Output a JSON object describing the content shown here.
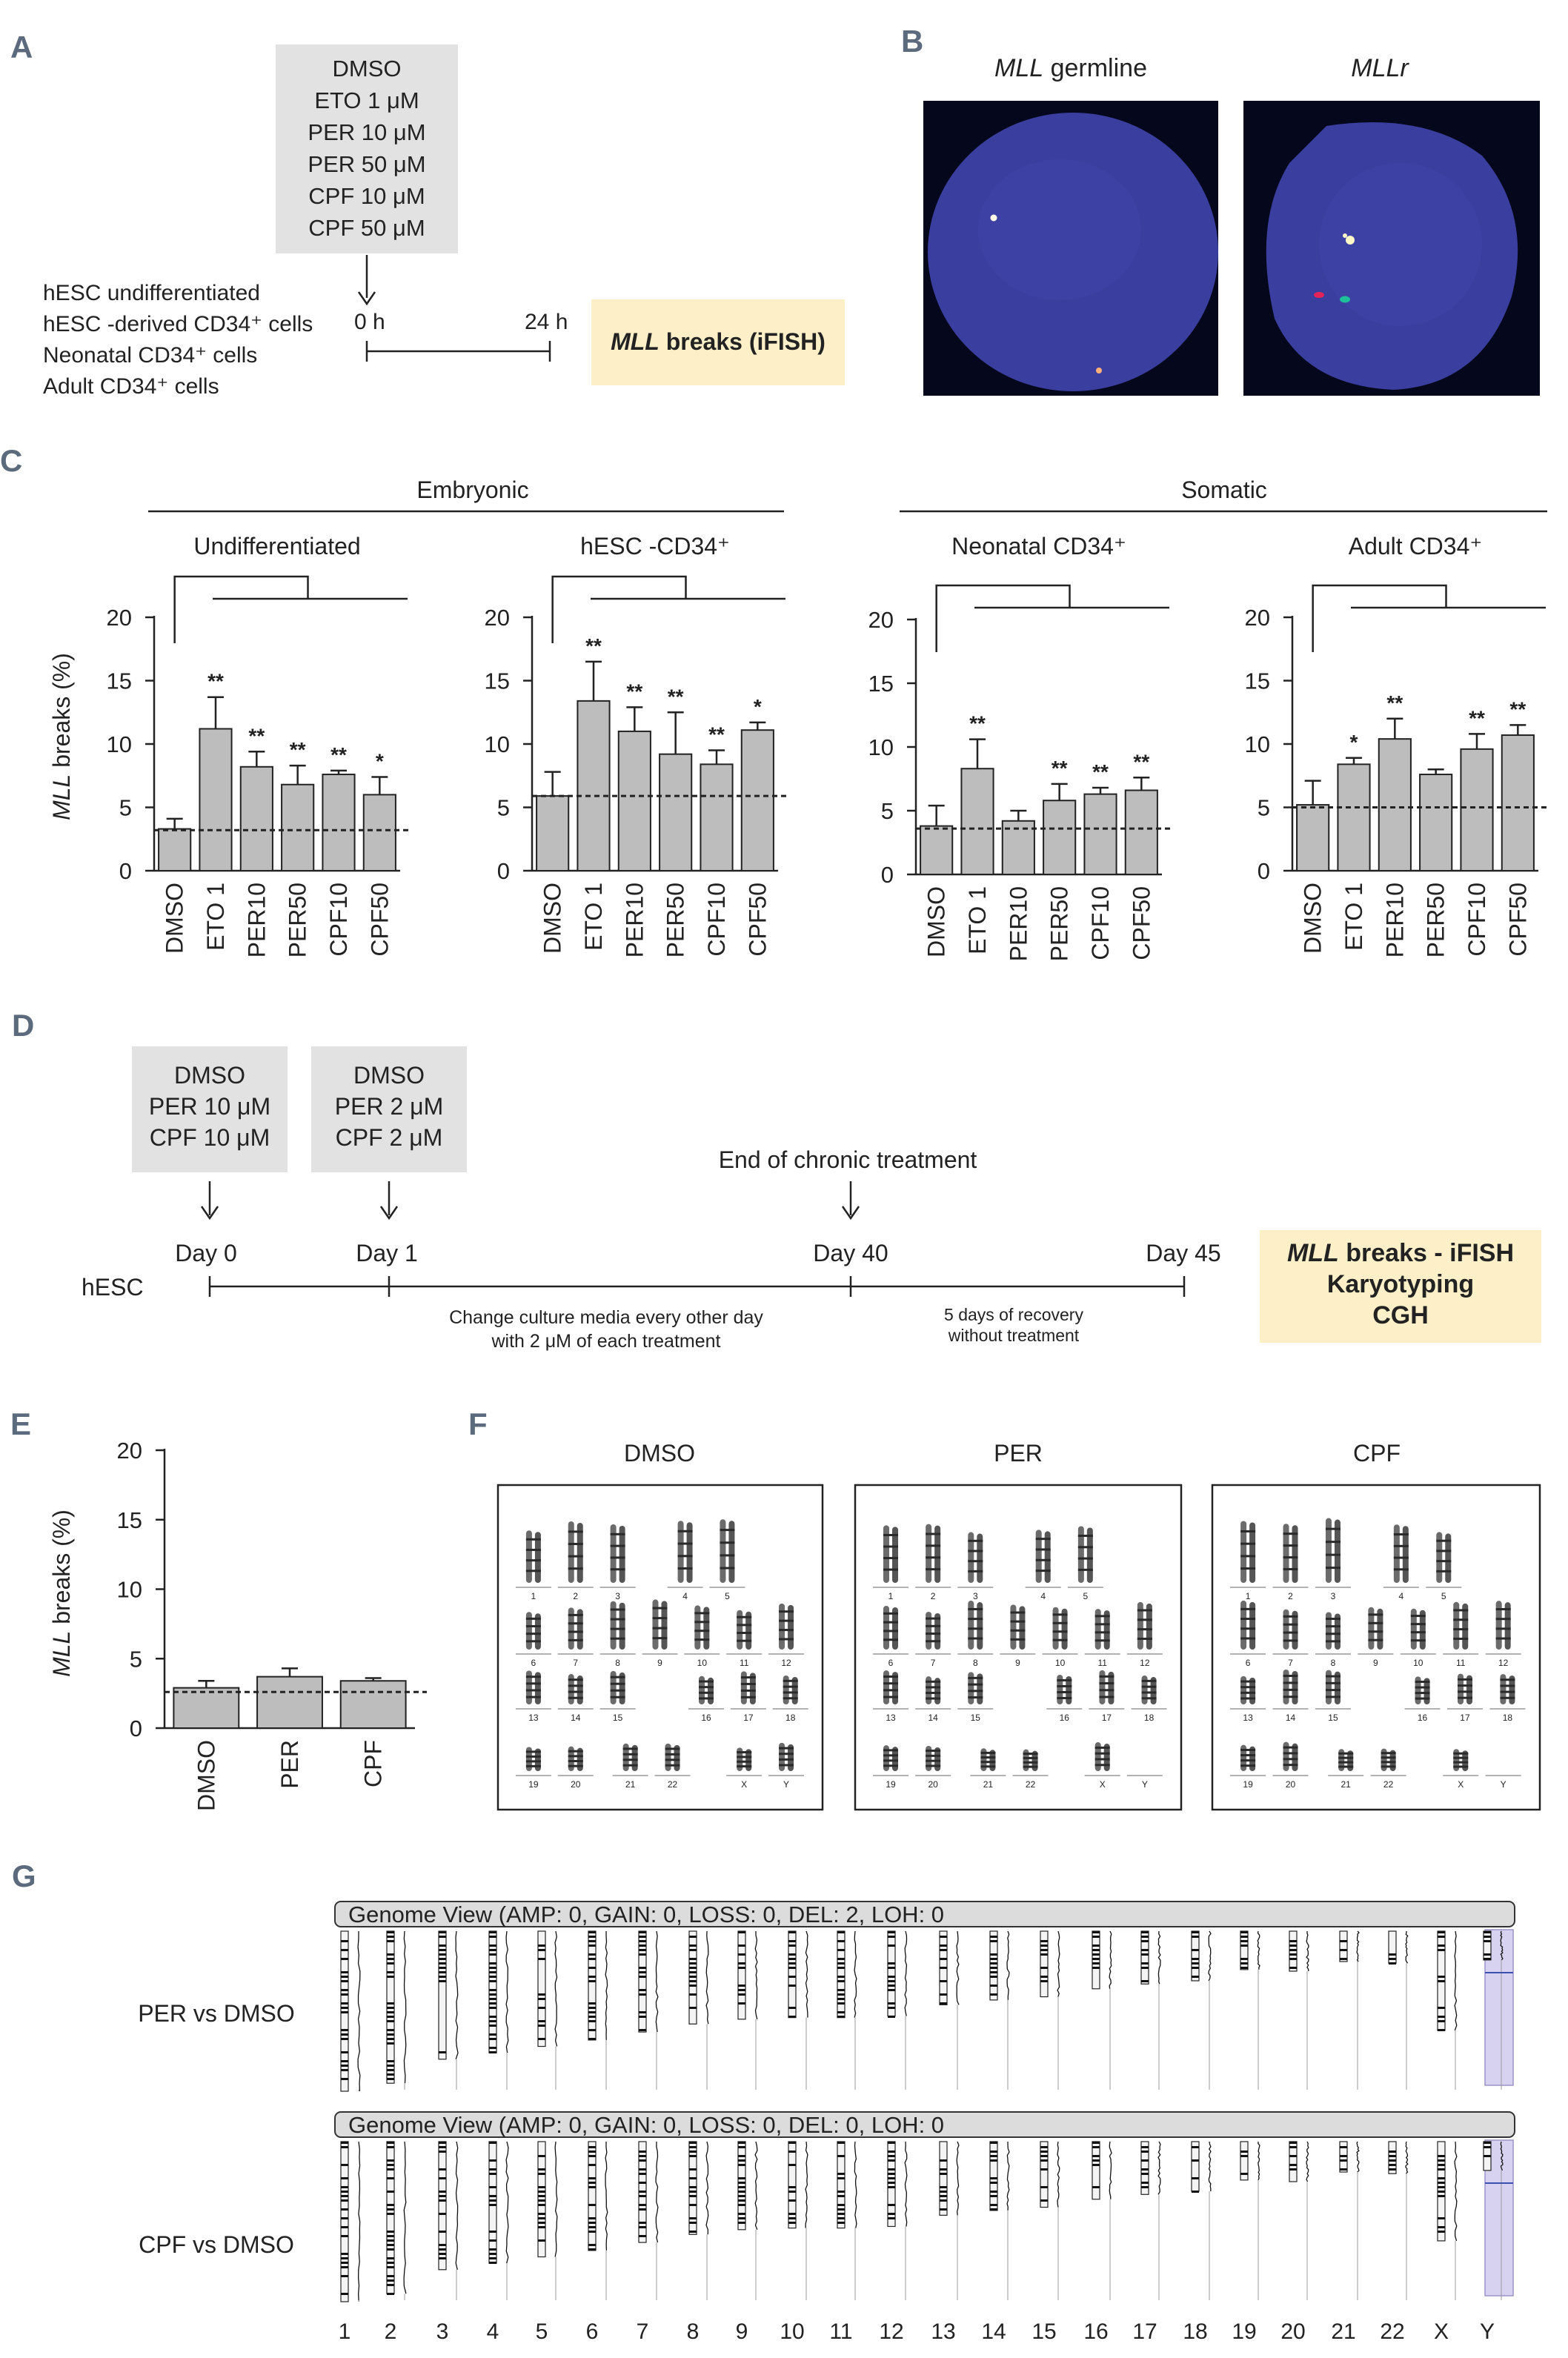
{
  "colors": {
    "bar": "#bdbdbd",
    "panel_letter": "#5b6b7d",
    "cream": "#fdf0c8",
    "grey_box": "#e2e2e2",
    "fish_bg": "#3a3e9e",
    "cgh_band": "#d6d2ef"
  },
  "panelA": {
    "letter": "A",
    "treatments": [
      "DMSO",
      "ETO 1 μM",
      "PER 10 μM",
      "PER 50 μM",
      "CPF 10 μM",
      "CPF 50 μM"
    ],
    "cells": [
      "hESC  undifferentiated",
      "hESC -derived CD34⁺ cells",
      "Neonatal CD34⁺ cells",
      "Adult CD34⁺ cells"
    ],
    "t0": "0 h",
    "t1": "24 h",
    "readout_gene": "MLL",
    "readout_rest": " breaks (iFISH)"
  },
  "panelB": {
    "letter": "B",
    "left_gene": "MLL",
    "left_rest": " germline",
    "right_title": "MLLr"
  },
  "panelC": {
    "letter": "C",
    "group_embryonic": "Embryonic",
    "group_somatic": "Somatic",
    "ylabel_gene": "MLL",
    "ylabel_rest": " breaks (%)"
  },
  "chart_data": [
    {
      "type": "bar",
      "title": "Undifferentiated",
      "categories": [
        "DMSO",
        "ETO 1",
        "PER10",
        "PER50",
        "CPF10",
        "CPF50"
      ],
      "values": [
        3.3,
        11.2,
        8.2,
        6.8,
        7.6,
        6.0
      ],
      "errors": [
        0.8,
        2.5,
        1.2,
        1.5,
        0.3,
        1.4
      ],
      "significance": [
        "",
        "**",
        "**",
        "**",
        "**",
        "*"
      ],
      "baseline": 3.2,
      "ylim": [
        0,
        20
      ],
      "yticks": [
        0,
        5,
        10,
        15,
        20
      ],
      "ylabel": "MLL breaks (%)"
    },
    {
      "type": "bar",
      "title": "hESC  -CD34⁺",
      "categories": [
        "DMSO",
        "ETO 1",
        "PER10",
        "PER50",
        "CPF10",
        "CPF50"
      ],
      "values": [
        5.9,
        13.4,
        11.0,
        9.2,
        8.4,
        11.1
      ],
      "errors": [
        1.9,
        3.1,
        1.9,
        3.3,
        1.1,
        0.6
      ],
      "significance": [
        "",
        "**",
        "**",
        "**",
        "**",
        "*"
      ],
      "baseline": 5.9,
      "ylim": [
        0,
        20
      ],
      "yticks": [
        0,
        5,
        10,
        15,
        20
      ],
      "ylabel": "MLL breaks (%)"
    },
    {
      "type": "bar",
      "title": "Neonatal CD34⁺",
      "categories": [
        "DMSO",
        "ETO 1",
        "PER10",
        "PER50",
        "CPF10",
        "CPF50"
      ],
      "values": [
        3.8,
        8.3,
        4.2,
        5.8,
        6.3,
        6.6
      ],
      "errors": [
        1.6,
        2.3,
        0.8,
        1.3,
        0.5,
        1.0
      ],
      "significance": [
        "",
        "**",
        "",
        "**",
        "**",
        "**"
      ],
      "baseline": 3.6,
      "ylim": [
        0,
        20
      ],
      "yticks": [
        0,
        5,
        10,
        15,
        20
      ],
      "ylabel": "MLL breaks (%)"
    },
    {
      "type": "bar",
      "title": "Adult CD34⁺",
      "categories": [
        "DMSO",
        "ETO 1",
        "PER10",
        "PER50",
        "CPF10",
        "CPF50"
      ],
      "values": [
        5.2,
        8.4,
        10.4,
        7.6,
        9.6,
        10.7
      ],
      "errors": [
        1.9,
        0.5,
        1.6,
        0.4,
        1.2,
        0.8
      ],
      "significance": [
        "",
        "*",
        "**",
        "",
        "**",
        "**"
      ],
      "baseline": 5.0,
      "ylim": [
        0,
        20
      ],
      "yticks": [
        0,
        5,
        10,
        15,
        20
      ],
      "ylabel": "MLL breaks (%)"
    },
    {
      "type": "bar",
      "title": "",
      "categories": [
        "DMSO",
        "PER",
        "CPF"
      ],
      "values": [
        2.9,
        3.7,
        3.4
      ],
      "errors": [
        0.5,
        0.6,
        0.2
      ],
      "significance": [
        "",
        "",
        ""
      ],
      "baseline": 2.6,
      "ylim": [
        0,
        20
      ],
      "yticks": [
        0,
        5,
        10,
        15,
        20
      ],
      "ylabel": "MLL breaks (%)"
    }
  ],
  "panelD": {
    "letter": "D",
    "box1": [
      "DMSO",
      "PER 10 μM",
      "CPF 10 μM"
    ],
    "box2": [
      "DMSO",
      "PER 2 μM",
      "CPF 2 μM"
    ],
    "end_label": "End of chronic treatment",
    "days": [
      "Day 0",
      "Day 1",
      "Day 40",
      "Day 45"
    ],
    "cell": "hESC",
    "note1a": "Change culture media every other day",
    "note1b": "with 2 μM of each treatment",
    "note2a": "5 days of recovery",
    "note2b": "without treatment",
    "readout1_gene": "MLL",
    "readout1_rest": " breaks - iFISH",
    "readout2": "Karyotyping",
    "readout3": "CGH"
  },
  "panelE": {
    "letter": "E"
  },
  "panelF": {
    "letter": "F",
    "titles": [
      "DMSO",
      "PER",
      "CPF"
    ],
    "row1": [
      "1",
      "2",
      "3",
      "4",
      "5"
    ],
    "row2": [
      "6",
      "7",
      "8",
      "9",
      "10",
      "11",
      "12"
    ],
    "row3": [
      "13",
      "14",
      "15",
      "16",
      "17",
      "18"
    ],
    "row4": [
      "19",
      "20",
      "21",
      "22",
      "X",
      "Y"
    ]
  },
  "panelG": {
    "letter": "G",
    "header1": "Genome View (AMP: 0, GAIN: 0, LOSS: 0, DEL: 2, LOH: 0",
    "header2": "Genome View (AMP: 0, GAIN: 0, LOSS: 0, DEL: 0, LOH: 0",
    "row1_label": "PER vs DMSO",
    "row2_label": "CPF vs DMSO",
    "chromosomes": [
      "1",
      "2",
      "3",
      "4",
      "5",
      "6",
      "7",
      "8",
      "9",
      "10",
      "11",
      "12",
      "13",
      "14",
      "15",
      "16",
      "17",
      "18",
      "19",
      "20",
      "21",
      "22",
      "X",
      "Y"
    ]
  }
}
